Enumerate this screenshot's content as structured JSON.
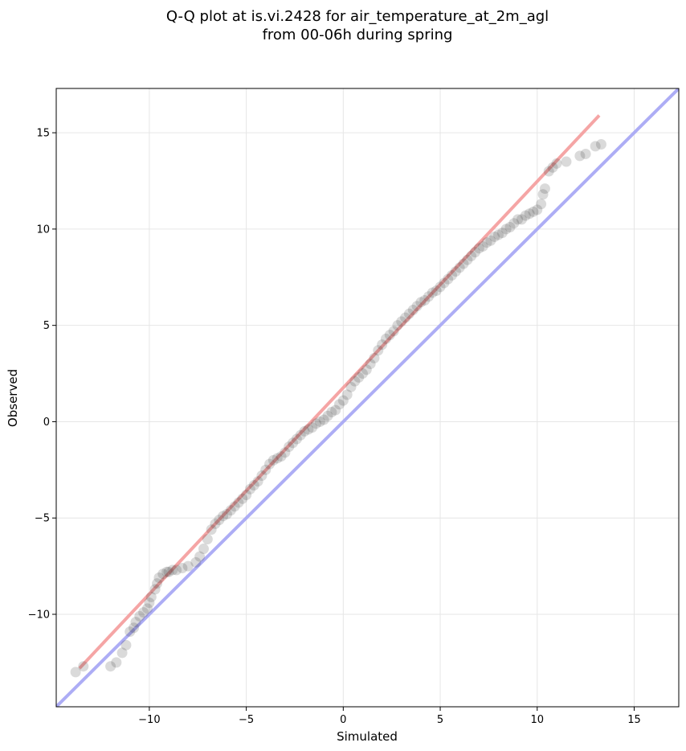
{
  "chart_data": {
    "type": "scatter",
    "title": "Q-Q plot at is.vi.2428 for air_temperature_at_2m_agl",
    "subtitle": "from 00-06h during spring",
    "xlabel": "Simulated",
    "ylabel": "Observed",
    "xlim": [
      -14.8,
      17.3
    ],
    "ylim": [
      -14.8,
      17.3
    ],
    "xticks": [
      -10,
      -5,
      0,
      5,
      10,
      15
    ],
    "yticks": [
      -10,
      -5,
      0,
      5,
      10,
      15
    ],
    "xtick_labels": [
      "−10",
      "−5",
      "0",
      "5",
      "10",
      "15"
    ],
    "ytick_labels": [
      "−10",
      "−5",
      "0",
      "5",
      "10",
      "15"
    ],
    "grid": true,
    "legend": null,
    "series": [
      {
        "kind": "scatter",
        "color": "#333333",
        "x": [
          -13.8,
          -13.4,
          -12.0,
          -11.7,
          -11.4,
          -11.2,
          -11.0,
          -10.8,
          -10.7,
          -10.5,
          -10.3,
          -10.1,
          -10.0,
          -9.9,
          -9.7,
          -9.6,
          -9.5,
          -9.3,
          -9.1,
          -9.0,
          -8.8,
          -8.6,
          -8.3,
          -8.0,
          -7.6,
          -7.4,
          -7.2,
          -7.0,
          -6.8,
          -6.6,
          -6.4,
          -6.2,
          -6.0,
          -5.8,
          -5.6,
          -5.4,
          -5.2,
          -5.0,
          -4.8,
          -4.6,
          -4.4,
          -4.2,
          -4.0,
          -3.8,
          -3.6,
          -3.4,
          -3.2,
          -3.0,
          -2.8,
          -2.6,
          -2.4,
          -2.2,
          -2.0,
          -1.8,
          -1.6,
          -1.4,
          -1.2,
          -1.0,
          -0.8,
          -0.6,
          -0.4,
          -0.2,
          0.0,
          0.2,
          0.4,
          0.6,
          0.8,
          1.0,
          1.2,
          1.4,
          1.6,
          1.8,
          2.0,
          2.2,
          2.4,
          2.6,
          2.8,
          3.0,
          3.2,
          3.4,
          3.6,
          3.8,
          4.0,
          4.2,
          4.4,
          4.6,
          4.8,
          5.0,
          5.2,
          5.4,
          5.6,
          5.8,
          6.0,
          6.2,
          6.4,
          6.6,
          6.8,
          7.0,
          7.2,
          7.4,
          7.6,
          7.8,
          8.0,
          8.2,
          8.4,
          8.6,
          8.8,
          9.0,
          9.2,
          9.4,
          9.6,
          9.8,
          10.0,
          10.2,
          10.3,
          10.4,
          10.6,
          10.8,
          11.0,
          11.5,
          12.2,
          12.5,
          13.0,
          13.3
        ],
        "y": [
          -13.0,
          -12.7,
          -12.7,
          -12.5,
          -12.0,
          -11.6,
          -10.9,
          -10.7,
          -10.4,
          -10.1,
          -9.9,
          -9.7,
          -9.4,
          -9.1,
          -8.7,
          -8.4,
          -8.1,
          -7.9,
          -7.8,
          -7.8,
          -7.7,
          -7.7,
          -7.6,
          -7.5,
          -7.3,
          -7.0,
          -6.6,
          -6.1,
          -5.6,
          -5.3,
          -5.1,
          -4.9,
          -4.8,
          -4.6,
          -4.4,
          -4.2,
          -4.0,
          -3.8,
          -3.5,
          -3.3,
          -3.1,
          -2.8,
          -2.5,
          -2.2,
          -2.0,
          -1.9,
          -1.8,
          -1.6,
          -1.3,
          -1.1,
          -0.9,
          -0.7,
          -0.5,
          -0.4,
          -0.3,
          -0.1,
          0.0,
          0.1,
          0.3,
          0.5,
          0.6,
          0.9,
          1.1,
          1.4,
          1.8,
          2.1,
          2.3,
          2.5,
          2.7,
          3.0,
          3.3,
          3.7,
          4.0,
          4.3,
          4.5,
          4.7,
          5.0,
          5.2,
          5.4,
          5.6,
          5.8,
          6.0,
          6.2,
          6.3,
          6.5,
          6.7,
          6.8,
          7.0,
          7.2,
          7.4,
          7.6,
          7.8,
          8.0,
          8.2,
          8.4,
          8.6,
          8.8,
          9.0,
          9.1,
          9.3,
          9.4,
          9.6,
          9.7,
          9.8,
          10.0,
          10.1,
          10.3,
          10.5,
          10.5,
          10.7,
          10.8,
          10.9,
          11.0,
          11.3,
          11.8,
          12.1,
          13.0,
          13.2,
          13.4,
          13.5,
          13.8,
          13.9,
          14.3,
          14.4
        ]
      },
      {
        "kind": "line",
        "color": "#f4a0a0",
        "x": [
          -13.6,
          13.2
        ],
        "y": [
          -12.8,
          15.9
        ]
      },
      {
        "kind": "line",
        "color": "#a9a9f4",
        "x": [
          -14.8,
          17.3
        ],
        "y": [
          -14.8,
          17.3
        ]
      }
    ]
  }
}
